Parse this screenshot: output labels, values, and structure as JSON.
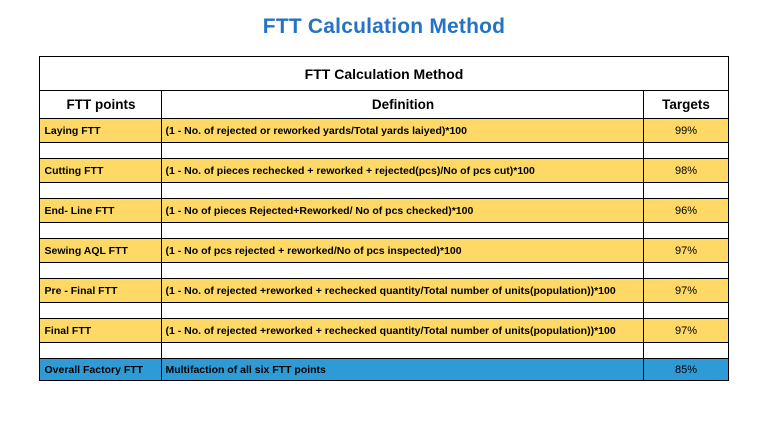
{
  "page_title": "FTT Calculation Method",
  "colors": {
    "title_blue": "#2473C5",
    "row_yellow": "#FFD966",
    "row_blue": "#2E9BD6",
    "border": "#000000"
  },
  "table": {
    "title": "FTT Calculation Method",
    "headers": [
      "FTT points",
      "Definition",
      "Targets"
    ],
    "rows": [
      {
        "type": "data",
        "point": "Laying FTT",
        "definition": "(1 - No. of rejected or reworked  yards/Total yards laiyed)*100",
        "target": "99%"
      },
      {
        "type": "spacer",
        "point": "",
        "definition": "",
        "target": ""
      },
      {
        "type": "data",
        "point": "Cutting FTT",
        "definition": "(1 - No. of  pieces rechecked + reworked + rejected(pcs)/No of pcs cut)*100",
        "target": "98%"
      },
      {
        "type": "spacer",
        "point": "",
        "definition": "",
        "target": ""
      },
      {
        "type": "data",
        "point": "End- Line FTT",
        "definition": "(1 - No of pieces Rejected+Reworked/ No of pcs checked)*100",
        "target": "96%"
      },
      {
        "type": "spacer",
        "point": "",
        "definition": "",
        "target": ""
      },
      {
        "type": "data",
        "point": "Sewing AQL FTT",
        "definition": "(1 - No of pcs rejected + reworked/No of pcs inspected)*100",
        "target": "97%"
      },
      {
        "type": "spacer",
        "point": "",
        "definition": "",
        "target": ""
      },
      {
        "type": "data",
        "point": "Pre - Final FTT",
        "definition": "(1 - No. of rejected +reworked + rechecked quantity/Total number of units(population))*100",
        "target": "97%"
      },
      {
        "type": "spacer",
        "point": "",
        "definition": "",
        "target": ""
      },
      {
        "type": "data",
        "point": "Final FTT",
        "definition": "(1 - No. of rejected +reworked + rechecked quantity/Total number of units(population))*100",
        "target": "97%"
      },
      {
        "type": "spacer",
        "point": "",
        "definition": "",
        "target": ""
      },
      {
        "type": "overall",
        "point": "Overall Factory FTT",
        "definition": "Multifaction of all six FTT points",
        "target": "85%"
      }
    ]
  }
}
